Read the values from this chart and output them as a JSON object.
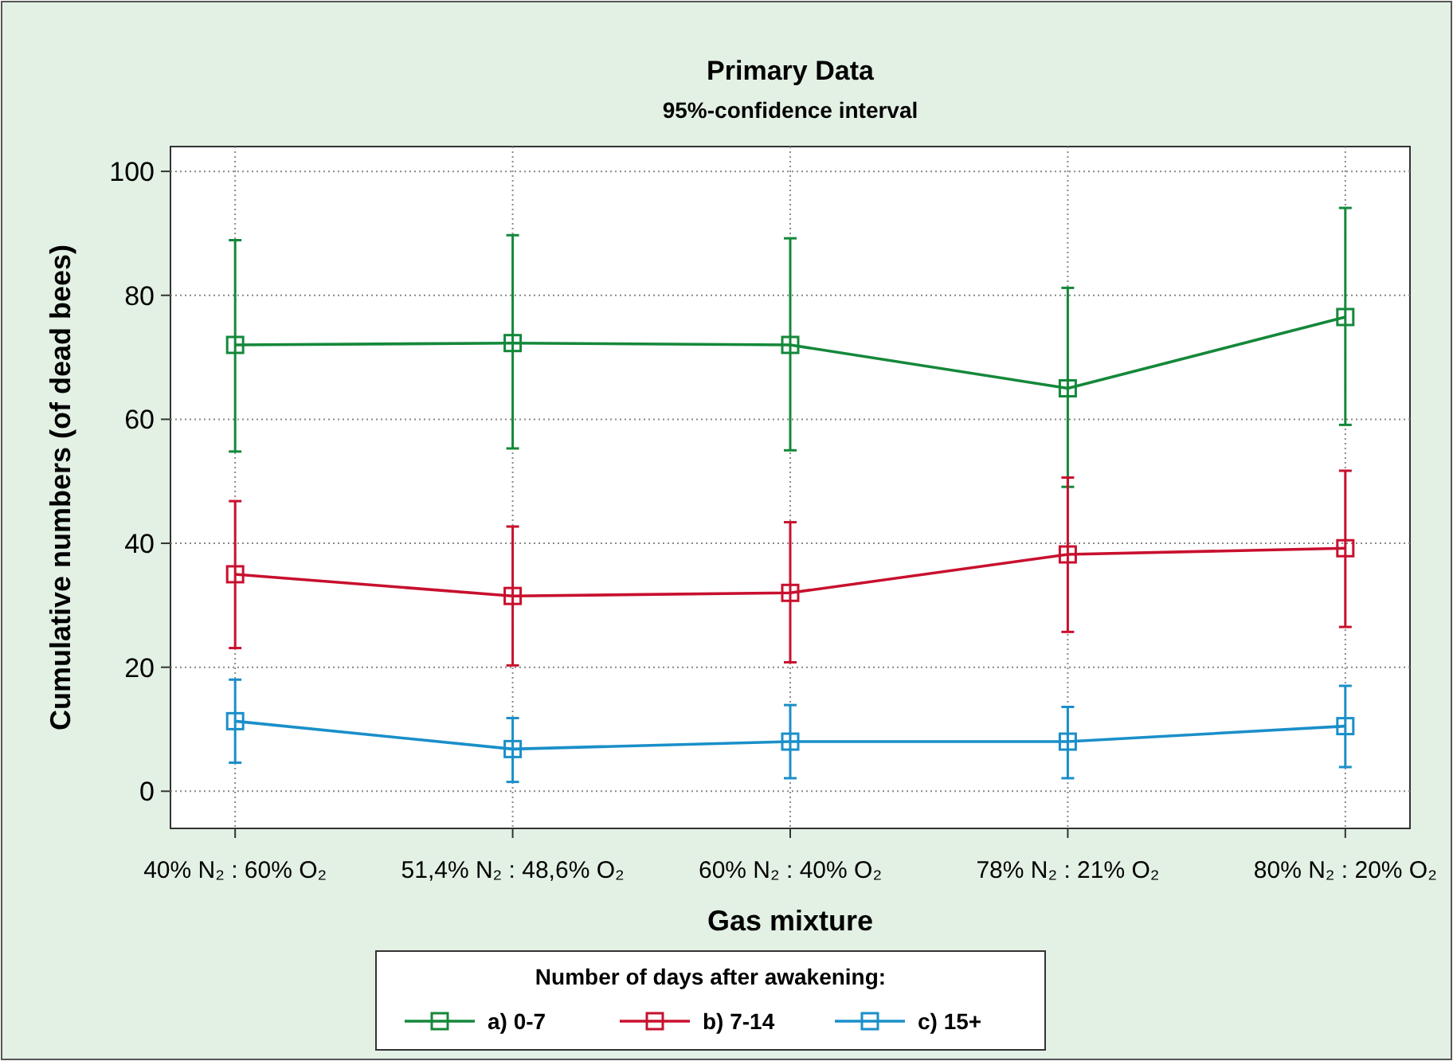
{
  "chart_data": {
    "type": "line",
    "title": "Primary Data",
    "subtitle": "95%-confidence interval",
    "xlabel": "Gas mixture",
    "ylabel": "Cumulative numbers (of dead bees)",
    "legend_title": "Number of days after awakening:",
    "categories": [
      "40% N₂ : 60% O₂",
      "51,4% N₂ : 48,6% O₂",
      "60% N₂ : 40% O₂",
      "78% N₂ : 21% O₂",
      "80% N₂ : 20% O₂"
    ],
    "series": [
      {
        "name": "a) 0-7",
        "color": "#14883a",
        "values": [
          72,
          72.3,
          72,
          65,
          76.5
        ],
        "errors": [
          [
            54.8,
            88.9
          ],
          [
            55.3,
            89.7
          ],
          [
            55,
            89.2
          ],
          [
            49.1,
            81.2
          ],
          [
            59.1,
            94.1
          ]
        ]
      },
      {
        "name": "b) 7-14",
        "color": "#c8102e",
        "values": [
          35,
          31.5,
          32,
          38.2,
          39.2
        ],
        "errors": [
          [
            23.1,
            46.8
          ],
          [
            20.3,
            42.7
          ],
          [
            20.8,
            43.4
          ],
          [
            25.7,
            50.6
          ],
          [
            26.5,
            51.7
          ]
        ]
      },
      {
        "name": "c) 15+",
        "color": "#1a8fc9",
        "values": [
          11.3,
          6.8,
          8,
          8,
          10.5
        ],
        "errors": [
          [
            4.6,
            18
          ],
          [
            1.5,
            11.8
          ],
          [
            2.1,
            13.9
          ],
          [
            2.1,
            13.6
          ],
          [
            3.9,
            17
          ]
        ]
      }
    ],
    "ylim": [
      -6,
      104
    ],
    "yticks": [
      0,
      20,
      40,
      60,
      80,
      100
    ],
    "grid": true,
    "legend": "bottom",
    "marker": "square",
    "line_style": "solid"
  }
}
